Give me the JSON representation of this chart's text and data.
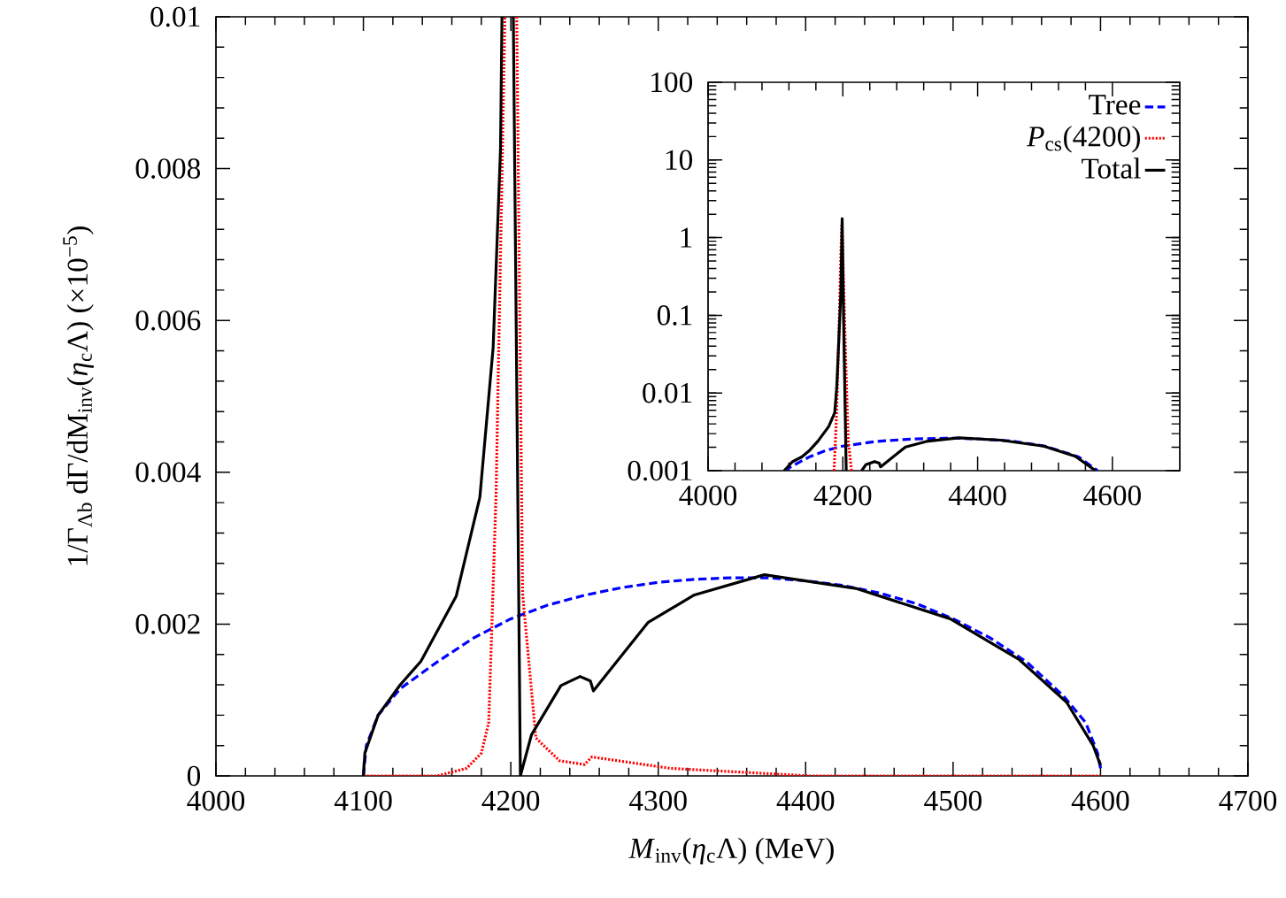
{
  "chart_data": [
    {
      "type": "line",
      "xlabel": "*M*$_{inv}$(*η*$_{c}$Λ) (MeV)",
      "ylabel": "1/Γ$_{Λb}$ dΓ/dM$_{inv}$(*η*$_{c}$Λ)   (×10$^{−5}$)",
      "xlim": [
        4000,
        4700
      ],
      "ylim": [
        0,
        0.01
      ],
      "xticks": [
        4000,
        4100,
        4200,
        4300,
        4400,
        4500,
        4600,
        4700
      ],
      "yticks": [
        0,
        0.002,
        0.004,
        0.006,
        0.008,
        0.01
      ],
      "marker": "none",
      "series": [
        {
          "color": "#0000ff",
          "line_style": "dashed",
          "x": [
            4100,
            4102,
            4110,
            4125,
            4150,
            4175,
            4200,
            4225,
            4250,
            4275,
            4300,
            4325,
            4350,
            4375,
            4400,
            4425,
            4450,
            4475,
            4500,
            4525,
            4550,
            4575,
            4590,
            4598,
            4600
          ],
          "values": [
            0,
            0.0004,
            0.0008,
            0.00115,
            0.0015,
            0.00182,
            0.00207,
            0.00225,
            0.00238,
            0.00248,
            0.00255,
            0.00259,
            0.00261,
            0.00261,
            0.00257,
            0.00251,
            0.00241,
            0.00227,
            0.00207,
            0.00182,
            0.0015,
            0.00105,
            0.0007,
            0.0003,
            0.0001
          ]
        },
        {
          "color": "#ff0000",
          "line_style": "dotted",
          "x": [
            4100,
            4150,
            4170,
            4180,
            4185,
            4190,
            4196,
            4200,
            4204,
            4208,
            4217,
            4233,
            4250,
            4255,
            4308,
            4403,
            4500,
            4600
          ],
          "values": [
            0,
            0,
            0.0001,
            0.0003,
            0.0007,
            0.0037,
            0.01,
            null,
            0.01,
            0.0024,
            0.0005,
            0.0002,
            0.00015,
            0.00025,
            0.0001,
            0,
            0,
            0
          ]
        },
        {
          "color": "#000000",
          "line_style": "solid",
          "x": [
            4100,
            4101,
            4110,
            4125,
            4139,
            4163,
            4179,
            4188,
            4193,
            4194,
            4198,
            4201.7,
            4206.5,
            4214,
            4234,
            4247,
            4254,
            4256,
            4293,
            4324,
            4372,
            4434,
            4498,
            4545,
            4577,
            4595,
            4600
          ],
          "values": [
            0,
            0.0003,
            0.0008,
            0.0012,
            0.00151,
            0.00237,
            0.00367,
            0.00564,
            0.00825,
            0.01,
            null,
            0.01,
            0,
            0.00054,
            0.00119,
            0.00131,
            0.00125,
            0.00112,
            0.00202,
            0.00238,
            0.00265,
            0.00247,
            0.00207,
            0.00153,
            0.00097,
            0.0004,
            0.00014
          ]
        }
      ]
    },
    {
      "type": "line",
      "xlim": [
        4000,
        4700
      ],
      "ylim": [
        0.001,
        100
      ],
      "xticks": [
        4000,
        4200,
        4400,
        4600
      ],
      "yticks": [
        0.001,
        0.01,
        0.1,
        1,
        10,
        100
      ],
      "log": "y",
      "legend": "top right",
      "marker": "none",
      "series": [
        {
          "name": "Tree",
          "color": "#0000ff",
          "line_style": "dashed",
          "x": [
            4113,
            4125,
            4150,
            4175,
            4200,
            4250,
            4300,
            4350,
            4375,
            4400,
            4450,
            4500,
            4550,
            4578
          ],
          "values": [
            0.001,
            0.00115,
            0.0015,
            0.00182,
            0.00207,
            0.00238,
            0.00255,
            0.00261,
            0.00261,
            0.00257,
            0.00241,
            0.00207,
            0.0015,
            0.001
          ]
        },
        {
          "name": "*P*$_{cs}$(4200)",
          "color": "#ff0000",
          "line_style": "dotted",
          "x": [
            4187,
            4190,
            4194,
            4197,
            4198.5,
            4200,
            4204,
            4208,
            4213
          ],
          "values": [
            0.001,
            0.0037,
            0.05,
            0.6,
            1.5,
            0.6,
            0.03,
            0.0024,
            0.001
          ]
        },
        {
          "name": "Total",
          "color": "#000000",
          "line_style": "solid",
          "x": [
            4113,
            4125,
            4139,
            4150,
            4163,
            4179,
            4188,
            4191,
            4197,
            4199,
            4201,
            4203,
            4205,
            4216,
            4228,
            4234,
            4247,
            4254,
            4256,
            4293,
            4324,
            4372,
            4434,
            4498,
            4545,
            4575
          ],
          "values": [
            0.001,
            0.0013,
            0.0015,
            0.0018,
            0.0024,
            0.0037,
            0.0056,
            0.012,
            0.19,
            1.76,
            0.1,
            0.01,
            0.001,
            null,
            0.001,
            0.00119,
            0.00131,
            0.00125,
            0.00112,
            0.00202,
            0.00238,
            0.00265,
            0.00247,
            0.00207,
            0.00153,
            0.001
          ]
        }
      ]
    }
  ]
}
